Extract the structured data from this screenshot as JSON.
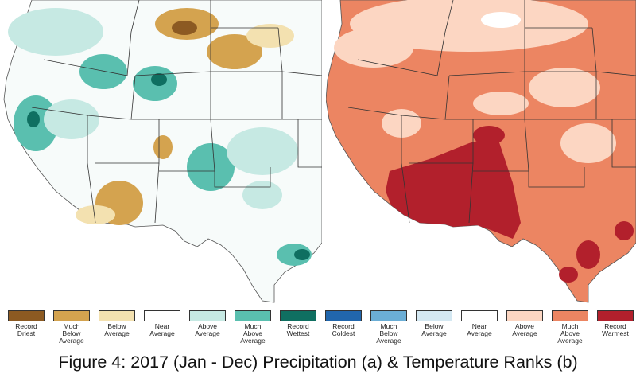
{
  "figure": {
    "caption": "Figure 4: 2017 (Jan - Dec) Precipitation (a) & Temperature Ranks (b)"
  },
  "legend": [
    {
      "label": "Record\nDriest",
      "color": "#8c5a22"
    },
    {
      "label": "Much\nBelow\nAverage",
      "color": "#d4a34f"
    },
    {
      "label": "Below\nAverage",
      "color": "#f3e1b0"
    },
    {
      "label": "Near\nAverage",
      "color": "#ffffff"
    },
    {
      "label": "Above\nAverage",
      "color": "#c6e9e3"
    },
    {
      "label": "Much\nAbove\nAverage",
      "color": "#5abfaf"
    },
    {
      "label": "Record\nWettest",
      "color": "#0f6f61"
    },
    {
      "label": "Record\nColdest",
      "color": "#2166ac"
    },
    {
      "label": "Much\nBelow\nAverage",
      "color": "#6baed6"
    },
    {
      "label": "Below\nAverage",
      "color": "#d4e8f2"
    },
    {
      "label": "Near\nAverage",
      "color": "#ffffff"
    },
    {
      "label": "Above\nAverage",
      "color": "#fcd6c2"
    },
    {
      "label": "Much\nAbove\nAverage",
      "color": "#ec8562"
    },
    {
      "label": "Record\nWarmest",
      "color": "#b2202c"
    }
  ],
  "maps": {
    "precipitation": {
      "base_color": "#f7fbfa",
      "border_color": "#333333"
    },
    "temperature": {
      "base_color": "#ec8562",
      "border_color": "#333333"
    }
  }
}
